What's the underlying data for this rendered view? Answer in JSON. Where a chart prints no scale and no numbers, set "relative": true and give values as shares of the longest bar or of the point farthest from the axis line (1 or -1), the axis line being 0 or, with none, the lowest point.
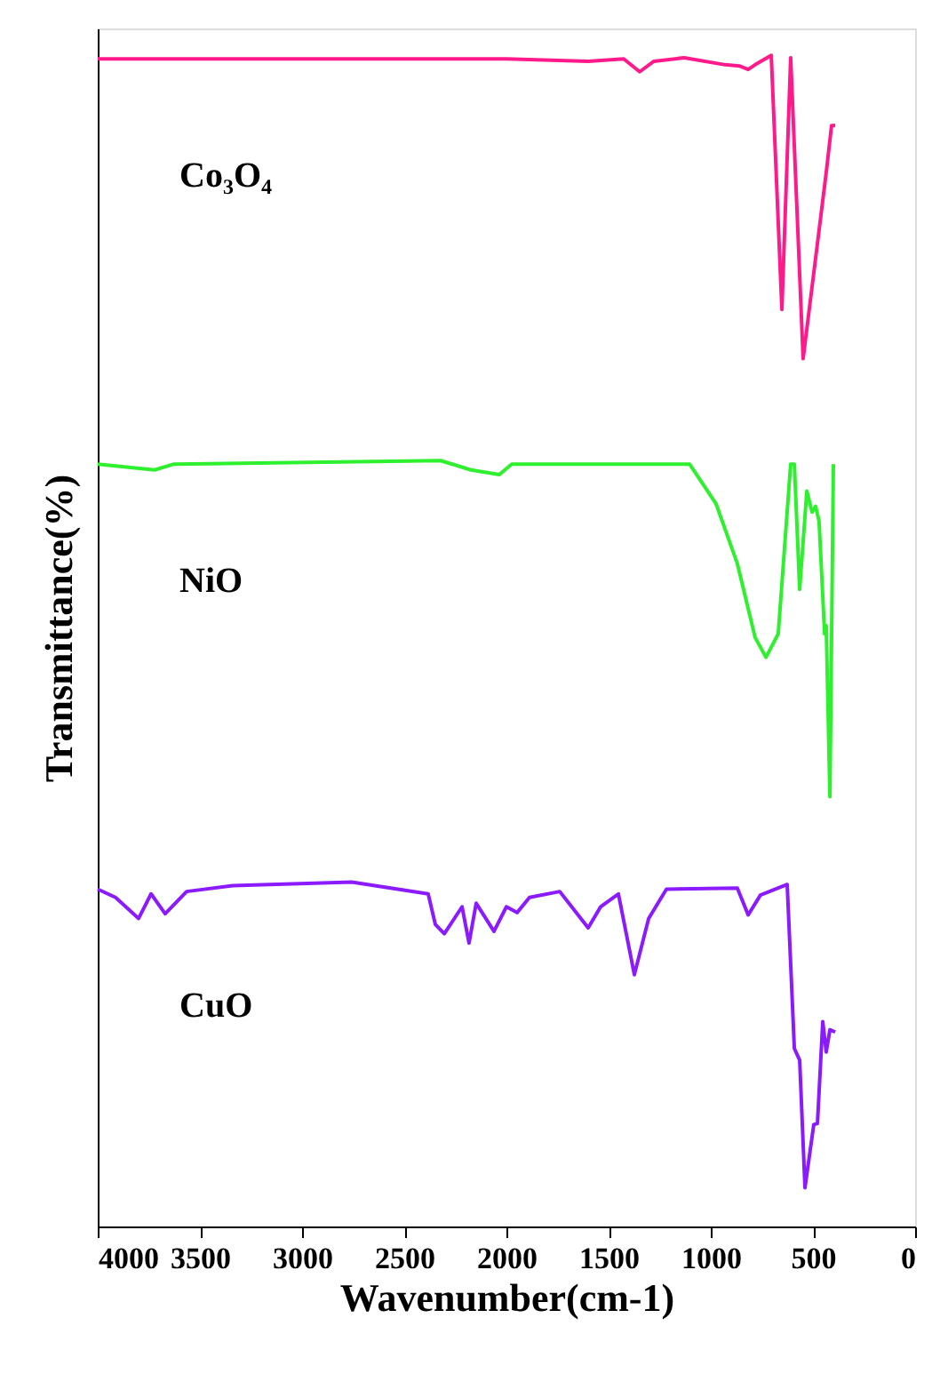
{
  "chart_data": {
    "type": "line",
    "relative": true,
    "xlabel": "Wavenumber(cm-1)",
    "ylabel": "Transmittance(%)",
    "xlim": [
      4000,
      0
    ],
    "xticks": [
      4000,
      3500,
      3000,
      2500,
      2000,
      1500,
      1000,
      500,
      0
    ],
    "tick_labels": "x",
    "grid": false,
    "legend": false,
    "marker": "none",
    "line_style": "solid",
    "series": [
      {
        "name": "Co₃O₄",
        "color": "#ff1a8c",
        "x": [
          4000,
          3000,
          2000,
          1600,
          1426,
          1348,
          1278,
          1130,
          930,
          860,
          817,
          783,
          704,
          652,
          609,
          548,
          435,
          409,
          391
        ],
        "values": [
          0.997,
          0.997,
          0.997,
          0.995,
          0.997,
          0.986,
          0.995,
          0.998,
          0.992,
          0.991,
          0.988,
          0.992,
          1.0,
          0.783,
          0.998,
          0.741,
          0.9,
          0.94,
          0.94
        ]
      },
      {
        "name": "NiO",
        "color": "#2ef02e",
        "x": [
          4000,
          3722,
          3626,
          2322,
          2174,
          2035,
          1974,
          1104,
          974,
          870,
          783,
          730,
          670,
          609,
          591,
          565,
          530,
          504,
          487,
          470,
          443,
          435,
          417,
          400
        ],
        "values": [
          0.651,
          0.646,
          0.651,
          0.654,
          0.646,
          0.642,
          0.651,
          0.651,
          0.617,
          0.566,
          0.503,
          0.486,
          0.506,
          0.651,
          0.651,
          0.544,
          0.628,
          0.61,
          0.615,
          0.602,
          0.506,
          0.513,
          0.367,
          0.651
        ]
      },
      {
        "name": "CuO",
        "color": "#8b1aff",
        "x": [
          4000,
          3913,
          3800,
          3739,
          3670,
          3565,
          3339,
          2757,
          2383,
          2348,
          2304,
          2217,
          2183,
          2148,
          2061,
          2000,
          1948,
          1887,
          1739,
          1600,
          1539,
          1452,
          1374,
          1304,
          1217,
          870,
          817,
          757,
          626,
          591,
          565,
          539,
          496,
          478,
          452,
          435,
          417,
          391
        ],
        "values": [
          0.288,
          0.281,
          0.263,
          0.284,
          0.267,
          0.286,
          0.291,
          0.294,
          0.284,
          0.258,
          0.25,
          0.273,
          0.242,
          0.276,
          0.252,
          0.273,
          0.268,
          0.281,
          0.286,
          0.255,
          0.273,
          0.284,
          0.215,
          0.263,
          0.288,
          0.289,
          0.266,
          0.283,
          0.292,
          0.152,
          0.142,
          0.033,
          0.087,
          0.088,
          0.175,
          0.149,
          0.168,
          0.166
        ]
      }
    ]
  }
}
